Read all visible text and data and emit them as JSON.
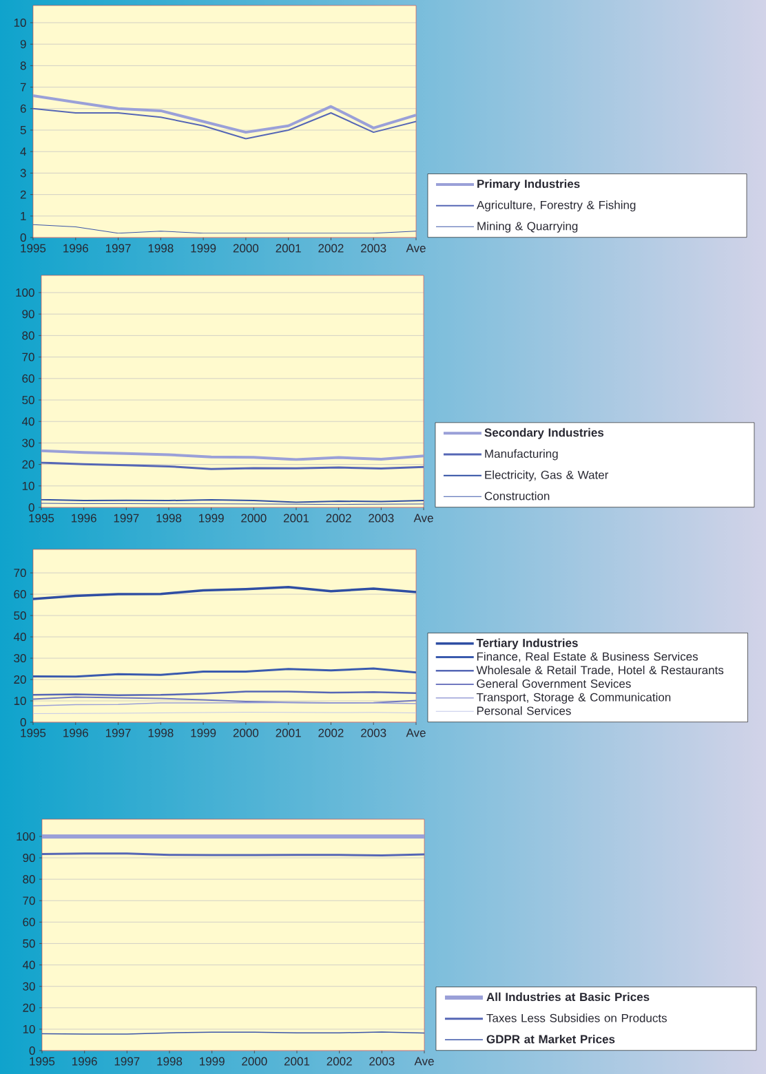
{
  "chart_data": [
    {
      "type": "line",
      "categories": [
        "1995",
        "1996",
        "1997",
        "1998",
        "1999",
        "2000",
        "2001",
        "2002",
        "2003",
        "Ave"
      ],
      "ylim": [
        0,
        10.8
      ],
      "yticks": [
        0,
        1,
        2,
        3,
        4,
        5,
        6,
        7,
        8,
        9,
        10
      ],
      "grid": "y",
      "legend": "right",
      "series": [
        {
          "name": "**Primary Industries**",
          "color": "#9aa0d8",
          "values": [
            6.6,
            6.3,
            6.0,
            5.9,
            5.4,
            4.9,
            5.2,
            6.1,
            5.1,
            5.7
          ]
        },
        {
          "name": "Agriculture, Forestry & Fishing",
          "color": "#5566b5",
          "values": [
            6.0,
            5.8,
            5.8,
            5.6,
            5.2,
            4.6,
            5.0,
            5.8,
            4.9,
            5.4
          ]
        },
        {
          "name": "Mining & Quarrying",
          "color": "#3b55a8",
          "values": [
            0.6,
            0.5,
            0.2,
            0.3,
            0.2,
            0.2,
            0.2,
            0.2,
            0.2,
            0.3
          ]
        }
      ]
    },
    {
      "type": "line",
      "categories": [
        "1995",
        "1996",
        "1997",
        "1998",
        "1999",
        "2000",
        "2001",
        "2002",
        "2003",
        "Ave"
      ],
      "ylim": [
        0,
        108
      ],
      "yticks": [
        0,
        10,
        20,
        30,
        40,
        50,
        60,
        70,
        80,
        90,
        100
      ],
      "grid": "y",
      "legend": "right",
      "series": [
        {
          "name": "**Secondary Industries**",
          "color": "#9aa0d8",
          "values": [
            26.4,
            25.6,
            25.1,
            24.5,
            23.5,
            23.3,
            22.3,
            23.2,
            22.4,
            24.0
          ]
        },
        {
          "name": "Manufacturing",
          "color": "#5566b5",
          "values": [
            20.8,
            20.1,
            19.6,
            19.1,
            17.9,
            18.3,
            18.2,
            18.6,
            18.1,
            18.8
          ]
        },
        {
          "name": "Electricity, Gas & Water",
          "color": "#2f4ea3",
          "values": [
            3.6,
            3.2,
            3.3,
            3.2,
            3.5,
            3.2,
            2.4,
            2.9,
            2.7,
            3.2
          ]
        },
        {
          "name": "Construction",
          "color": "#3b55a8",
          "values": [
            1.9,
            1.8,
            1.8,
            1.7,
            1.7,
            1.6,
            1.5,
            1.4,
            1.5,
            1.6
          ]
        }
      ]
    },
    {
      "type": "line",
      "categories": [
        "1995",
        "1996",
        "1997",
        "1998",
        "1999",
        "2000",
        "2001",
        "2002",
        "2003",
        "Ave"
      ],
      "ylim": [
        0,
        81
      ],
      "yticks": [
        0,
        10,
        20,
        30,
        40,
        50,
        60,
        70
      ],
      "grid": "y",
      "legend": "right",
      "series": [
        {
          "name": "**Tertiary Industries**",
          "color": "#2f4ea3",
          "values": [
            57.8,
            59.2,
            60.0,
            60.1,
            61.8,
            62.4,
            63.3,
            61.4,
            62.6,
            61.0
          ]
        },
        {
          "name": "Finance, Real Estate & Business Services",
          "color": "#3a5aae",
          "values": [
            21.5,
            21.4,
            22.5,
            22.2,
            23.7,
            23.7,
            24.9,
            24.3,
            25.2,
            23.3
          ]
        },
        {
          "name": "Wholesale & Retail Trade, Hotel & Restaurants",
          "color": "#5566b5",
          "values": [
            12.8,
            13.1,
            12.7,
            12.8,
            13.4,
            14.4,
            14.4,
            13.9,
            14.1,
            13.6
          ]
        },
        {
          "name": "General Government Sevices",
          "color": "#7078c0",
          "values": [
            10.8,
            11.8,
            11.5,
            11.1,
            10.5,
            9.7,
            9.3,
            9.0,
            9.1,
            10.2
          ]
        },
        {
          "name": "Transport, Storage & Communication",
          "color": "#9aa0d8",
          "values": [
            7.7,
            8.2,
            8.3,
            9.0,
            9.0,
            9.1,
            9.2,
            9.0,
            9.0,
            8.7
          ]
        },
        {
          "name": "Personal Services",
          "color": "#c4c8ea",
          "values": [
            4.0,
            4.1,
            4.2,
            4.4,
            4.5,
            4.7,
            4.6,
            4.5,
            4.6,
            4.4
          ]
        }
      ]
    },
    {
      "type": "line",
      "categories": [
        "1995",
        "1996",
        "1997",
        "1998",
        "1999",
        "2000",
        "2001",
        "2002",
        "2003",
        "Ave"
      ],
      "ylim": [
        0,
        108
      ],
      "yticks": [
        0,
        10,
        20,
        30,
        40,
        50,
        60,
        70,
        80,
        90,
        100
      ],
      "grid": "y",
      "legend": "right",
      "series": [
        {
          "name": "**All Industries at Basic  Prices**",
          "color": "#9aa0d8",
          "values": [
            100,
            100,
            100,
            100,
            100,
            100,
            100,
            100,
            100,
            100
          ]
        },
        {
          "name": "Taxes Less Subsidies on Products",
          "color": "#5566b5",
          "values": [
            91.8,
            92.0,
            92.0,
            91.4,
            91.3,
            91.3,
            91.4,
            91.4,
            91.1,
            91.6
          ]
        },
        {
          "name": "**GDPR at Market Prices**",
          "color": "#3b55a8",
          "values": [
            7.9,
            7.7,
            7.7,
            8.3,
            8.6,
            8.6,
            8.3,
            8.3,
            8.7,
            8.2
          ]
        }
      ]
    }
  ]
}
